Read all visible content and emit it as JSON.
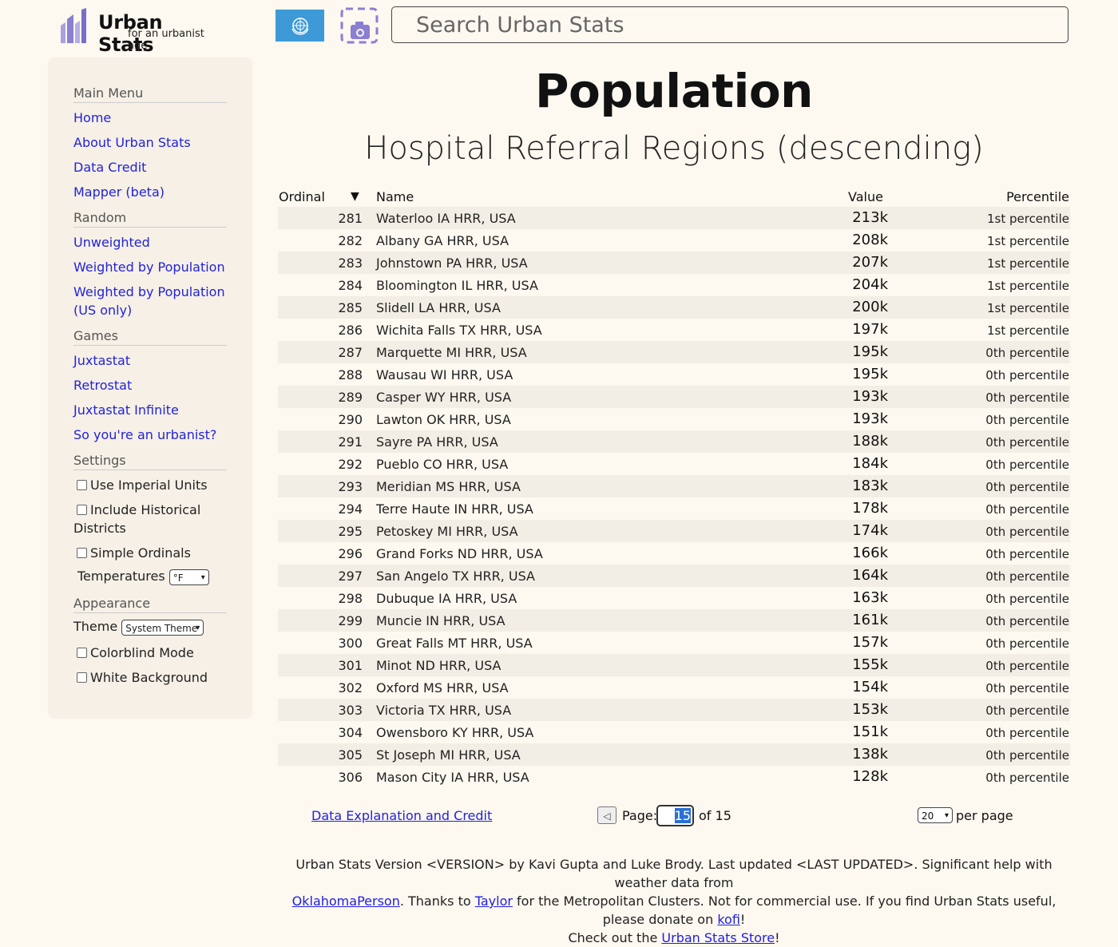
{
  "header": {
    "logo_title": "Urban Stats",
    "logo_subtitle": "for an urbanist age",
    "search_placeholder": "Search Urban Stats"
  },
  "sidebar": {
    "sections": {
      "main_menu": "Main Menu",
      "random": "Random",
      "games": "Games",
      "settings": "Settings",
      "appearance": "Appearance"
    },
    "main_links": [
      "Home",
      "About Urban Stats",
      "Data Credit",
      "Mapper (beta)"
    ],
    "random_links": [
      "Unweighted",
      "Weighted by Population",
      "Weighted by Population (US only)"
    ],
    "game_links": [
      "Juxtastat",
      "Retrostat",
      "Juxtastat Infinite",
      "So you're an urbanist?"
    ],
    "settings": {
      "imperial": "Use Imperial Units",
      "historical": "Include Historical Districts",
      "simple_ordinals": "Simple Ordinals",
      "temperatures_label": "Temperatures",
      "temperatures_value": "°F"
    },
    "appearance": {
      "theme_label": "Theme",
      "theme_value": "System Theme",
      "colorblind": "Colorblind Mode",
      "white_bg": "White Background"
    }
  },
  "main": {
    "title": "Population",
    "subtitle": "Hospital Referral Regions (descending)"
  },
  "table": {
    "headers": {
      "ordinal": "Ordinal",
      "sort_arrow": "▼",
      "name": "Name",
      "value": "Value",
      "percentile": "Percentile"
    },
    "rows": [
      {
        "ordinal": "281",
        "name": "Waterloo IA HRR, USA",
        "value": "213k",
        "percentile": "1st percentile"
      },
      {
        "ordinal": "282",
        "name": "Albany GA HRR, USA",
        "value": "208k",
        "percentile": "1st percentile"
      },
      {
        "ordinal": "283",
        "name": "Johnstown PA HRR, USA",
        "value": "207k",
        "percentile": "1st percentile"
      },
      {
        "ordinal": "284",
        "name": "Bloomington IL HRR, USA",
        "value": "204k",
        "percentile": "1st percentile"
      },
      {
        "ordinal": "285",
        "name": "Slidell LA HRR, USA",
        "value": "200k",
        "percentile": "1st percentile"
      },
      {
        "ordinal": "286",
        "name": "Wichita Falls TX HRR, USA",
        "value": "197k",
        "percentile": "1st percentile"
      },
      {
        "ordinal": "287",
        "name": "Marquette MI HRR, USA",
        "value": "195k",
        "percentile": "0th percentile"
      },
      {
        "ordinal": "288",
        "name": "Wausau WI HRR, USA",
        "value": "195k",
        "percentile": "0th percentile"
      },
      {
        "ordinal": "289",
        "name": "Casper WY HRR, USA",
        "value": "193k",
        "percentile": "0th percentile"
      },
      {
        "ordinal": "290",
        "name": "Lawton OK HRR, USA",
        "value": "193k",
        "percentile": "0th percentile"
      },
      {
        "ordinal": "291",
        "name": "Sayre PA HRR, USA",
        "value": "188k",
        "percentile": "0th percentile"
      },
      {
        "ordinal": "292",
        "name": "Pueblo CO HRR, USA",
        "value": "184k",
        "percentile": "0th percentile"
      },
      {
        "ordinal": "293",
        "name": "Meridian MS HRR, USA",
        "value": "183k",
        "percentile": "0th percentile"
      },
      {
        "ordinal": "294",
        "name": "Terre Haute IN HRR, USA",
        "value": "178k",
        "percentile": "0th percentile"
      },
      {
        "ordinal": "295",
        "name": "Petoskey MI HRR, USA",
        "value": "174k",
        "percentile": "0th percentile"
      },
      {
        "ordinal": "296",
        "name": "Grand Forks ND HRR, USA",
        "value": "166k",
        "percentile": "0th percentile"
      },
      {
        "ordinal": "297",
        "name": "San Angelo TX HRR, USA",
        "value": "164k",
        "percentile": "0th percentile"
      },
      {
        "ordinal": "298",
        "name": "Dubuque IA HRR, USA",
        "value": "163k",
        "percentile": "0th percentile"
      },
      {
        "ordinal": "299",
        "name": "Muncie IN HRR, USA",
        "value": "161k",
        "percentile": "0th percentile"
      },
      {
        "ordinal": "300",
        "name": "Great Falls MT HRR, USA",
        "value": "157k",
        "percentile": "0th percentile"
      },
      {
        "ordinal": "301",
        "name": "Minot ND HRR, USA",
        "value": "155k",
        "percentile": "0th percentile"
      },
      {
        "ordinal": "302",
        "name": "Oxford MS HRR, USA",
        "value": "154k",
        "percentile": "0th percentile"
      },
      {
        "ordinal": "303",
        "name": "Victoria TX HRR, USA",
        "value": "153k",
        "percentile": "0th percentile"
      },
      {
        "ordinal": "304",
        "name": "Owensboro KY HRR, USA",
        "value": "151k",
        "percentile": "0th percentile"
      },
      {
        "ordinal": "305",
        "name": "St Joseph MI HRR, USA",
        "value": "138k",
        "percentile": "0th percentile"
      },
      {
        "ordinal": "306",
        "name": "Mason City IA HRR, USA",
        "value": "128k",
        "percentile": "0th percentile"
      }
    ]
  },
  "pagination": {
    "explanation_link": "Data Explanation and Credit",
    "prev_symbol": "◁",
    "page_label": "Page:",
    "current_page": "15",
    "of_text": "of 15",
    "per_page_value": "20",
    "per_page_label": "per page"
  },
  "footer": {
    "line1": "Urban Stats Version <VERSION> by Kavi Gupta and Luke Brody. Last updated <LAST UPDATED>. Significant help with weather data from",
    "oklahoma_link": "OklahomaPerson",
    "thanks_text": ". Thanks to",
    "taylor_link": "Taylor",
    "clusters_text": "for the Metropolitan Clusters. Not for commercial use. If you find Urban Stats useful, please donate on",
    "kofi_link": "kofi",
    "bang": "!",
    "checkout_text": "Check out the",
    "store_link": "Urban Stats Store"
  },
  "colors": {
    "background": "#fdf8f0",
    "sidebar": "#f6f0e6",
    "link": "#2323d8",
    "flag_blue": "#3e9ad6",
    "logo_purple": "#8a7fd0",
    "row_alt": "#f3eee5"
  },
  "icons": {
    "logo": "city-bars-logo-icon",
    "flag": "un-flag-icon",
    "screenshot": "camera-screenshot-icon"
  }
}
